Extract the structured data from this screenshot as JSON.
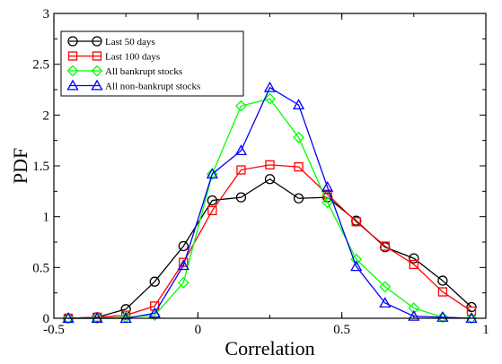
{
  "chart_data": {
    "type": "line",
    "xlabel": "Correlation",
    "ylabel": "PDF",
    "xlim": [
      -0.5,
      1
    ],
    "ylim": [
      0,
      3
    ],
    "xticks": [
      -0.5,
      0,
      0.5,
      1
    ],
    "xtick_labels": [
      "-0.5",
      "0",
      "0.5",
      "1"
    ],
    "yticks": [
      0,
      0.5,
      1,
      1.5,
      2,
      2.5,
      3
    ],
    "ytick_labels": [
      "0",
      "0.5",
      "1",
      "1.5",
      "2",
      "2.5",
      "3"
    ],
    "grid": false,
    "legend_position": "top-left",
    "x": [
      -0.45,
      -0.35,
      -0.25,
      -0.15,
      -0.05,
      0.05,
      0.15,
      0.25,
      0.35,
      0.45,
      0.55,
      0.65,
      0.75,
      0.85,
      0.95
    ],
    "series": [
      {
        "name": "Last 50 days",
        "color": "#000000",
        "marker": "circle",
        "values": [
          0.0,
          0.01,
          0.09,
          0.36,
          0.71,
          1.16,
          1.19,
          1.37,
          1.18,
          1.19,
          0.96,
          0.7,
          0.59,
          0.37,
          0.11
        ]
      },
      {
        "name": "Last 100 days",
        "color": "#ff0000",
        "marker": "square",
        "values": [
          0.0,
          0.01,
          0.03,
          0.12,
          0.55,
          1.06,
          1.46,
          1.51,
          1.49,
          1.22,
          0.95,
          0.71,
          0.53,
          0.26,
          0.07
        ]
      },
      {
        "name": "All bankrupt stocks",
        "color": "#00ff00",
        "marker": "diamond",
        "values": [
          0.0,
          0.0,
          0.01,
          0.03,
          0.35,
          1.42,
          2.09,
          2.16,
          1.78,
          1.14,
          0.58,
          0.31,
          0.1,
          0.01,
          0.0
        ]
      },
      {
        "name": "All non-bankrupt stocks",
        "color": "#0000ff",
        "marker": "triangle",
        "values": [
          0.0,
          0.0,
          0.0,
          0.05,
          0.52,
          1.42,
          1.65,
          2.27,
          2.1,
          1.29,
          0.51,
          0.15,
          0.02,
          0.01,
          0.0
        ]
      }
    ]
  }
}
